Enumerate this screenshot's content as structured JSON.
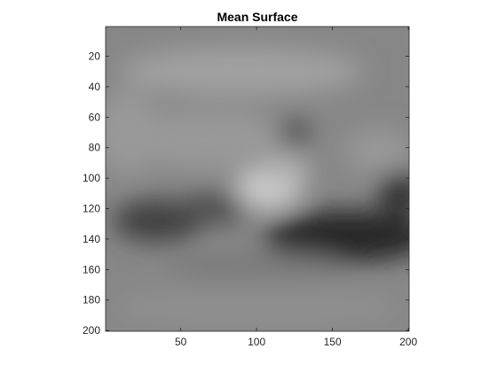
{
  "chart_data": {
    "type": "heatmap",
    "title": "Mean Surface",
    "xlabel": "",
    "ylabel": "",
    "xlim": [
      1,
      200
    ],
    "ylim": [
      1,
      200
    ],
    "y_direction": "reverse",
    "colormap": "gray",
    "x_ticks": [
      50,
      100,
      150,
      200
    ],
    "y_ticks": [
      20,
      40,
      60,
      80,
      100,
      120,
      140,
      160,
      180,
      200
    ],
    "grid": false,
    "background_level": 0.53,
    "features": [
      {
        "name": "upper haze",
        "x": 90,
        "y": 30,
        "rx": 80,
        "ry": 16,
        "level": 0.63
      },
      {
        "name": "left glow",
        "x": 15,
        "y": 70,
        "rx": 22,
        "ry": 28,
        "level": 0.6
      },
      {
        "name": "middle light",
        "x": 70,
        "y": 75,
        "rx": 50,
        "ry": 20,
        "level": 0.6
      },
      {
        "name": "bright streak",
        "x": 108,
        "y": 107,
        "rx": 22,
        "ry": 14,
        "level": 0.8
      },
      {
        "name": "bright blob",
        "x": 120,
        "y": 95,
        "rx": 15,
        "ry": 10,
        "level": 0.7
      },
      {
        "name": "right light",
        "x": 180,
        "y": 82,
        "rx": 22,
        "ry": 14,
        "level": 0.6
      },
      {
        "name": "dark spot",
        "x": 125,
        "y": 70,
        "rx": 10,
        "ry": 9,
        "level": 0.3
      },
      {
        "name": "dark left",
        "x": 35,
        "y": 128,
        "rx": 30,
        "ry": 14,
        "level": 0.25
      },
      {
        "name": "dark mid",
        "x": 70,
        "y": 120,
        "rx": 25,
        "ry": 10,
        "level": 0.3
      },
      {
        "name": "dark right band",
        "x": 160,
        "y": 138,
        "rx": 55,
        "ry": 17,
        "level": 0.15
      },
      {
        "name": "dark right edge",
        "x": 195,
        "y": 110,
        "rx": 15,
        "ry": 14,
        "level": 0.2
      },
      {
        "name": "mid gray bottom",
        "x": 100,
        "y": 158,
        "rx": 60,
        "ry": 10,
        "level": 0.48
      },
      {
        "name": "bottom light",
        "x": 100,
        "y": 185,
        "rx": 95,
        "ry": 15,
        "level": 0.56
      }
    ]
  }
}
